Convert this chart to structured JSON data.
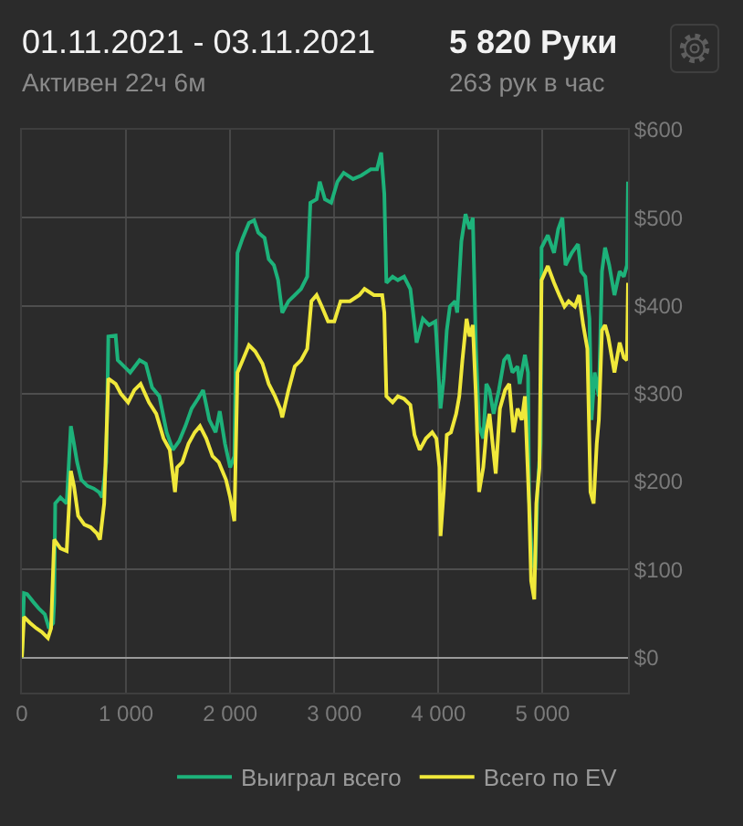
{
  "chart_data": {
    "type": "line",
    "title": "01.11.2021 - 03.11.2021",
    "subtitle": "Активен 22ч 6м",
    "annotations": [
      "5 820 Руки",
      "263 рук в час"
    ],
    "series": [
      {
        "name": "Выиграл всего",
        "color": "#1db27a",
        "x": [
          0,
          20,
          50,
          110,
          160,
          220,
          260,
          300,
          310,
          320,
          370,
          430,
          470,
          500,
          530,
          570,
          630,
          690,
          740,
          770,
          810,
          830,
          900,
          920,
          980,
          1040,
          1130,
          1190,
          1250,
          1320,
          1390,
          1450,
          1510,
          1570,
          1630,
          1690,
          1740,
          1800,
          1860,
          1900,
          1950,
          2000,
          2040,
          2070,
          2120,
          2180,
          2230,
          2270,
          2330,
          2370,
          2420,
          2460,
          2500,
          2560,
          2620,
          2680,
          2740,
          2770,
          2830,
          2860,
          2910,
          2970,
          3030,
          3090,
          3180,
          3260,
          3350,
          3410,
          3450,
          3480,
          3500,
          3560,
          3610,
          3670,
          3730,
          3790,
          3850,
          3910,
          3970,
          3980,
          4020,
          4050,
          4080,
          4110,
          4160,
          4180,
          4220,
          4260,
          4300,
          4330,
          4360,
          4390,
          4430,
          4460,
          4490,
          4530,
          4580,
          4630,
          4670,
          4710,
          4760,
          4780,
          4830,
          4860,
          4870,
          4900,
          4930,
          4950,
          4980,
          4990,
          5050,
          5110,
          5150,
          5190,
          5220,
          5280,
          5340,
          5370,
          5410,
          5450,
          5470,
          5500,
          5540,
          5570,
          5600,
          5640,
          5690,
          5740,
          5780,
          5810,
          5820
        ],
        "values": [
          0,
          73,
          72,
          63,
          56,
          49,
          33,
          39,
          63,
          175,
          182,
          175,
          263,
          243,
          222,
          202,
          195,
          192,
          188,
          182,
          222,
          365,
          366,
          338,
          331,
          324,
          338,
          334,
          307,
          297,
          256,
          236,
          246,
          263,
          283,
          294,
          304,
          270,
          256,
          280,
          243,
          216,
          229,
          460,
          477,
          494,
          497,
          483,
          477,
          453,
          446,
          429,
          392,
          405,
          412,
          419,
          433,
          517,
          521,
          541,
          521,
          517,
          541,
          551,
          544,
          548,
          555,
          555,
          574,
          527,
          426,
          433,
          429,
          433,
          419,
          358,
          385,
          378,
          382,
          365,
          283,
          317,
          372,
          399,
          405,
          392,
          473,
          504,
          487,
          500,
          351,
          263,
          249,
          311,
          304,
          277,
          304,
          338,
          344,
          324,
          331,
          311,
          344,
          324,
          182,
          107,
          100,
          188,
          243,
          466,
          480,
          460,
          487,
          500,
          446,
          460,
          470,
          439,
          433,
          385,
          270,
          324,
          297,
          439,
          466,
          446,
          412,
          439,
          433,
          446,
          541
        ]
      },
      {
        "name": "Всего по EV",
        "color": "#f0e83a",
        "x": [
          0,
          20,
          80,
          140,
          190,
          250,
          280,
          310,
          370,
          430,
          470,
          500,
          540,
          600,
          660,
          720,
          750,
          790,
          830,
          900,
          950,
          1020,
          1080,
          1140,
          1220,
          1290,
          1360,
          1420,
          1470,
          1490,
          1540,
          1600,
          1660,
          1710,
          1770,
          1830,
          1890,
          1960,
          2000,
          2040,
          2070,
          2120,
          2180,
          2240,
          2310,
          2370,
          2430,
          2480,
          2500,
          2560,
          2620,
          2680,
          2740,
          2780,
          2830,
          2880,
          2940,
          3000,
          3060,
          3150,
          3240,
          3290,
          3380,
          3460,
          3480,
          3500,
          3560,
          3610,
          3670,
          3730,
          3770,
          3820,
          3880,
          3940,
          3980,
          4010,
          4020,
          4050,
          4080,
          4120,
          4170,
          4200,
          4230,
          4270,
          4300,
          4330,
          4360,
          4390,
          4430,
          4460,
          4490,
          4520,
          4550,
          4590,
          4640,
          4680,
          4720,
          4760,
          4800,
          4830,
          4870,
          4890,
          4920,
          4940,
          4970,
          4990,
          5050,
          5110,
          5160,
          5210,
          5250,
          5310,
          5350,
          5390,
          5430,
          5460,
          5490,
          5520,
          5540,
          5570,
          5600,
          5630,
          5690,
          5740,
          5780,
          5810,
          5820
        ],
        "values": [
          0,
          46,
          39,
          33,
          29,
          22,
          33,
          134,
          124,
          121,
          212,
          195,
          161,
          151,
          148,
          141,
          134,
          175,
          317,
          311,
          300,
          290,
          304,
          311,
          290,
          277,
          249,
          236,
          188,
          216,
          222,
          243,
          256,
          263,
          249,
          229,
          222,
          202,
          182,
          155,
          324,
          338,
          355,
          348,
          334,
          311,
          297,
          283,
          273,
          304,
          331,
          338,
          351,
          405,
          412,
          399,
          382,
          382,
          405,
          405,
          412,
          419,
          412,
          412,
          392,
          297,
          290,
          297,
          294,
          287,
          253,
          236,
          249,
          256,
          249,
          216,
          138,
          188,
          253,
          256,
          277,
          297,
          338,
          385,
          365,
          378,
          297,
          188,
          216,
          256,
          277,
          243,
          209,
          283,
          304,
          311,
          256,
          283,
          270,
          297,
          175,
          87,
          66,
          175,
          216,
          429,
          445,
          426,
          412,
          399,
          405,
          399,
          412,
          378,
          351,
          188,
          175,
          243,
          270,
          372,
          378,
          365,
          324,
          358,
          341,
          338,
          426
        ]
      }
    ],
    "xlim": [
      0,
      5820
    ],
    "xticks": [
      0,
      {
        "value": 1000,
        "label": "1 000"
      },
      {
        "value": 2000,
        "label": "2 000"
      },
      {
        "value": 3000,
        "label": "3 000"
      },
      {
        "value": 4000,
        "label": "4 000"
      },
      {
        "value": 5000,
        "label": "5 000"
      }
    ],
    "ylim": [
      -40,
      600
    ],
    "yticks": [
      {
        "value": 0,
        "label": "$0"
      },
      {
        "value": 100,
        "label": "$100"
      },
      {
        "value": 200,
        "label": "$200"
      },
      {
        "value": 300,
        "label": "$300"
      },
      {
        "value": 400,
        "label": "$400"
      },
      {
        "value": 500,
        "label": "$500"
      },
      {
        "value": 600,
        "label": "$600"
      }
    ],
    "grid": true,
    "legend": "bottom right",
    "marker": "none",
    "line_style": "solid"
  }
}
